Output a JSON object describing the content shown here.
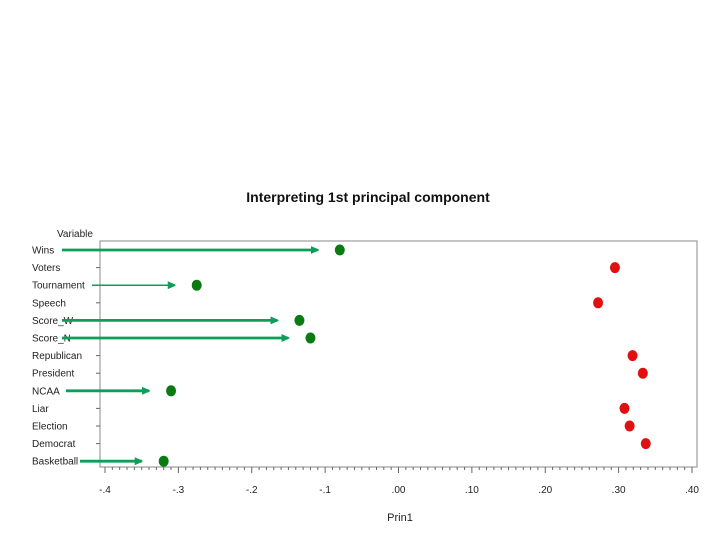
{
  "chart_data": {
    "type": "scatter",
    "title": "Interpreting 1st principal component",
    "ylabel": "Variable",
    "xlabel": "Prin1",
    "xlim": [
      -0.4,
      0.4
    ],
    "x_tick_values": [
      -0.4,
      -0.3,
      -0.2,
      -0.1,
      0.0,
      0.1,
      0.2,
      0.3,
      0.4
    ],
    "x_tick_labels": [
      "-.4",
      "-.3",
      "-.2",
      "-.1",
      ".00",
      ".10",
      ".20",
      ".30",
      ".40"
    ],
    "points": [
      {
        "variable": "Wins",
        "x": -0.08,
        "color": "#0a7a12",
        "arrow": true
      },
      {
        "variable": "Voters",
        "x": 0.295,
        "color": "#e01010",
        "arrow": false
      },
      {
        "variable": "Tournament",
        "x": -0.275,
        "color": "#0a7a12",
        "arrow": true
      },
      {
        "variable": "Speech",
        "x": 0.272,
        "color": "#e01010",
        "arrow": false
      },
      {
        "variable": "Score_W",
        "x": -0.135,
        "color": "#0a7a12",
        "arrow": true
      },
      {
        "variable": "Score_N",
        "x": -0.12,
        "color": "#0a7a12",
        "arrow": true
      },
      {
        "variable": "Republican",
        "x": 0.319,
        "color": "#e01010",
        "arrow": false
      },
      {
        "variable": "President",
        "x": 0.333,
        "color": "#e01010",
        "arrow": false
      },
      {
        "variable": "NCAA",
        "x": -0.31,
        "color": "#0a7a12",
        "arrow": true
      },
      {
        "variable": "Liar",
        "x": 0.308,
        "color": "#e01010",
        "arrow": false
      },
      {
        "variable": "Election",
        "x": 0.315,
        "color": "#e01010",
        "arrow": false
      },
      {
        "variable": "Democrat",
        "x": 0.337,
        "color": "#e01010",
        "arrow": false
      },
      {
        "variable": "Basketball",
        "x": -0.32,
        "color": "#0a7a12",
        "arrow": true
      }
    ],
    "arrow_color": "#0f9e5a",
    "grid": false
  }
}
